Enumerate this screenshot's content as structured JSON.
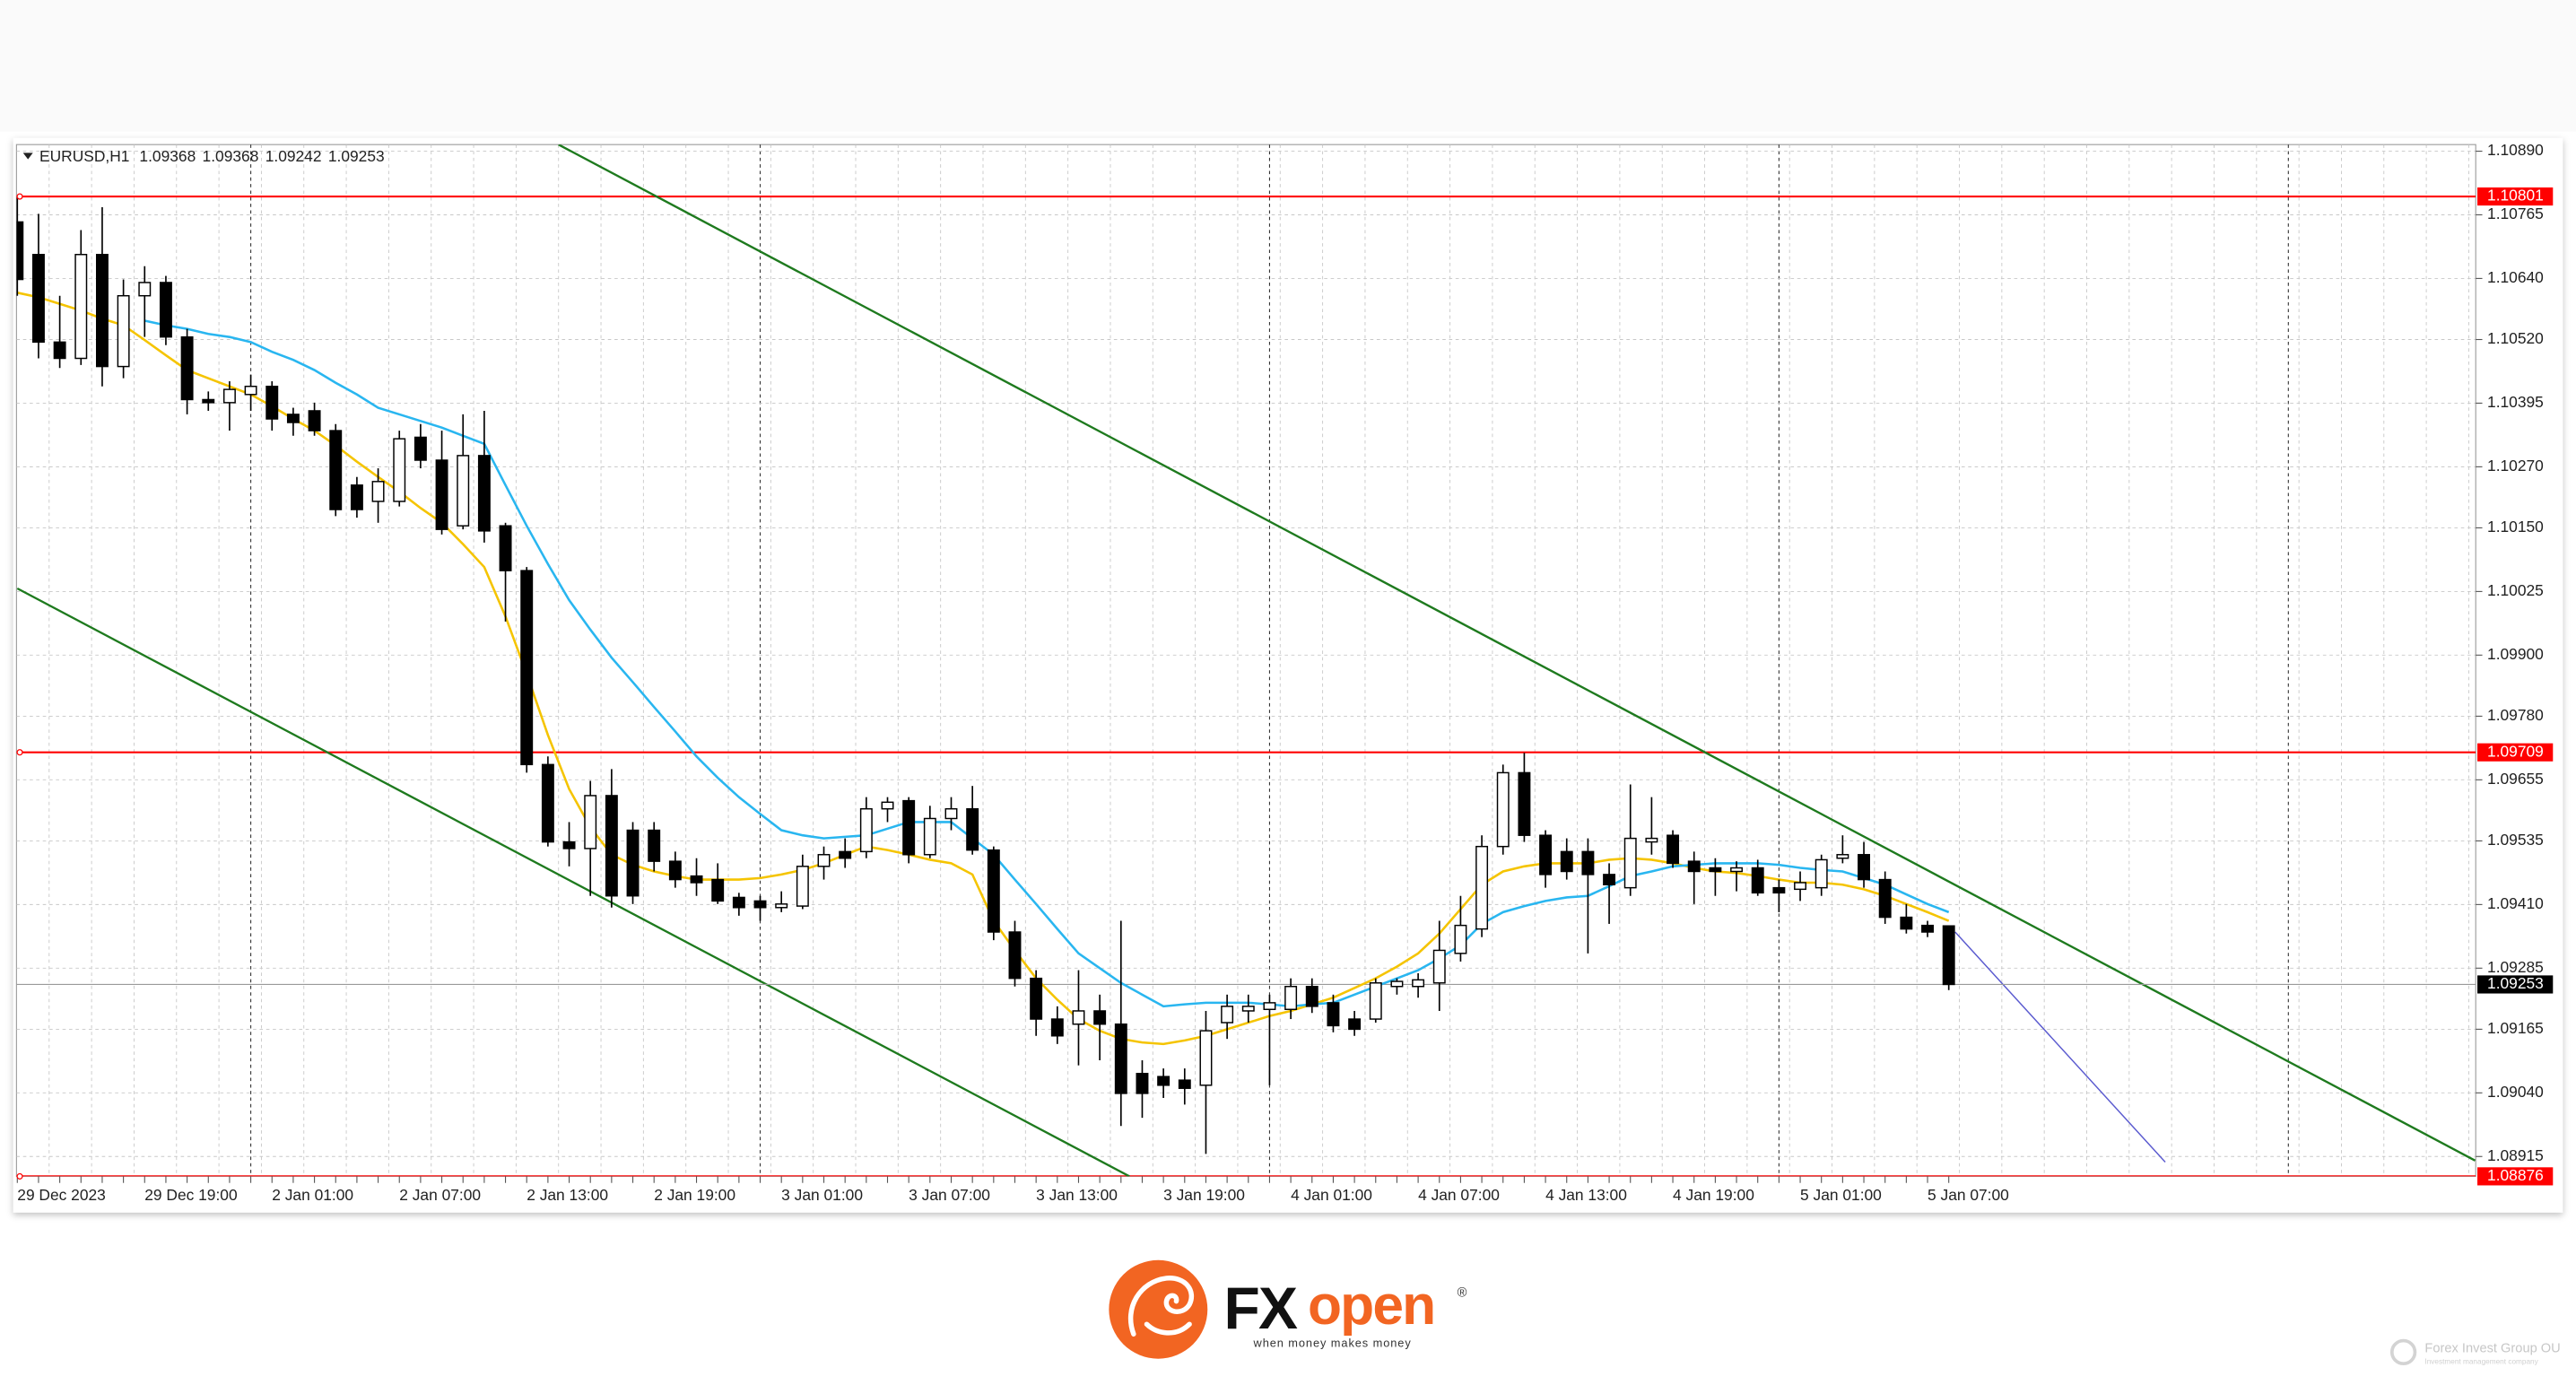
{
  "chart_data": {
    "type": "candlestick",
    "symbol": "EURUSD,H1",
    "categories": [
      "29 Dec 2023",
      null,
      null,
      null,
      null,
      null,
      "29 Dec 19:00",
      null,
      null,
      null,
      null,
      null,
      "2 Jan 01:00",
      null,
      null,
      null,
      null,
      null,
      "2 Jan 07:00",
      null,
      null,
      null,
      null,
      null,
      "2 Jan 13:00",
      null,
      null,
      null,
      null,
      null,
      "2 Jan 19:00",
      null,
      null,
      null,
      null,
      null,
      "3 Jan 01:00",
      null,
      null,
      null,
      null,
      null,
      "3 Jan 07:00",
      null,
      null,
      null,
      null,
      null,
      "3 Jan 13:00",
      null,
      null,
      null,
      null,
      null,
      "3 Jan 19:00",
      null,
      null,
      null,
      null,
      null,
      "4 Jan 01:00",
      null,
      null,
      null,
      null,
      null,
      "4 Jan 07:00",
      null,
      null,
      null,
      null,
      null,
      "4 Jan 13:00",
      null,
      null,
      null,
      null,
      null,
      "4 Jan 19:00",
      null,
      null,
      null,
      null,
      null,
      "5 Jan 01:00",
      null,
      null,
      null,
      null,
      null,
      "5 Jan 07:00",
      null
    ],
    "open": [
      1.10751,
      1.10687,
      1.10515,
      1.10483,
      1.10687,
      1.10467,
      1.10606,
      1.10632,
      1.10525,
      1.10402,
      1.10396,
      1.10412,
      1.10428,
      1.10373,
      1.1038,
      1.10341,
      1.10234,
      1.10202,
      1.10202,
      1.10328,
      1.10283,
      1.10154,
      1.10292,
      1.10154,
      1.10066,
      1.09685,
      1.09533,
      1.0952,
      1.09624,
      1.09556,
      1.09556,
      1.09495,
      1.09466,
      1.09459,
      1.09424,
      1.09417,
      1.09404,
      1.09407,
      1.09485,
      1.09514,
      1.09514,
      1.09598,
      1.09614,
      1.09508,
      1.09579,
      1.09598,
      1.09517,
      1.09356,
      1.09265,
      1.09185,
      1.09175,
      1.09201,
      1.09175,
      1.09078,
      1.09072,
      1.09065,
      1.09055,
      1.09178,
      1.09201,
      1.09204,
      1.09204,
      1.09249,
      1.09217,
      1.09185,
      1.09185,
      1.09249,
      1.09249,
      1.09256,
      1.09314,
      1.09362,
      1.09524,
      1.09669,
      1.09546,
      1.09514,
      1.09514,
      1.09469,
      1.09443,
      1.09533,
      1.09546,
      1.09495,
      1.09482,
      1.09475,
      1.09482,
      1.09443,
      1.0944,
      1.09443,
      1.09501,
      1.09508,
      1.09459,
      1.09385,
      1.09369,
      1.09368
    ],
    "high": [
      1.108,
      1.10767,
      1.10606,
      1.10735,
      1.1078,
      1.10638,
      1.10664,
      1.10645,
      1.10541,
      1.10418,
      1.10438,
      1.10451,
      1.10438,
      1.10386,
      1.10396,
      1.10354,
      1.1025,
      1.10267,
      1.10341,
      1.10354,
      1.10341,
      1.10373,
      1.1038,
      1.1016,
      1.10073,
      1.09701,
      1.09572,
      1.09653,
      1.09676,
      1.09572,
      1.09572,
      1.09514,
      1.09501,
      1.09491,
      1.09433,
      1.09427,
      1.09436,
      1.09508,
      1.09524,
      1.0954,
      1.09621,
      1.09621,
      1.09621,
      1.09604,
      1.09621,
      1.09643,
      1.09524,
      1.09378,
      1.09281,
      1.0921,
      1.09281,
      1.09233,
      1.09378,
      1.09104,
      1.09088,
      1.09088,
      1.09201,
      1.09233,
      1.09233,
      1.09233,
      1.09265,
      1.09265,
      1.09233,
      1.09201,
      1.09265,
      1.09265,
      1.09275,
      1.09378,
      1.09427,
      1.09546,
      1.09685,
      1.09708,
      1.09556,
      1.0954,
      1.0954,
      1.09491,
      1.09646,
      1.09621,
      1.09556,
      1.09514,
      1.09501,
      1.09495,
      1.09498,
      1.09459,
      1.09475,
      1.09508,
      1.09546,
      1.09533,
      1.09475,
      1.09411,
      1.09378,
      1.09368
    ],
    "low": [
      1.10606,
      1.10483,
      1.10464,
      1.1047,
      1.10428,
      1.10444,
      1.10525,
      1.10509,
      1.10373,
      1.1038,
      1.10341,
      1.1038,
      1.10341,
      1.10331,
      1.10331,
      1.10173,
      1.1017,
      1.1016,
      1.10192,
      1.10267,
      1.10137,
      1.10147,
      1.10121,
      1.09966,
      1.09669,
      1.09524,
      1.09485,
      1.09427,
      1.09404,
      1.09411,
      1.09475,
      1.09443,
      1.09427,
      1.09411,
      1.09388,
      1.09378,
      1.09395,
      1.09401,
      1.09459,
      1.09482,
      1.09501,
      1.09572,
      1.09491,
      1.09501,
      1.09556,
      1.09508,
      1.0934,
      1.09249,
      1.09152,
      1.09136,
      1.09094,
      1.09104,
      1.08975,
      1.08991,
      1.0903,
      1.09017,
      1.0892,
      1.09146,
      1.09178,
      1.09055,
      1.09185,
      1.09197,
      1.09159,
      1.09152,
      1.09178,
      1.09233,
      1.09227,
      1.09201,
      1.09298,
      1.09346,
      1.09508,
      1.09533,
      1.09443,
      1.09459,
      1.09314,
      1.09372,
      1.09427,
      1.09508,
      1.09482,
      1.09411,
      1.09427,
      1.09436,
      1.09427,
      1.09395,
      1.09417,
      1.09427,
      1.09491,
      1.09443,
      1.09372,
      1.09353,
      1.09346,
      1.09242
    ],
    "close": [
      1.10638,
      1.10515,
      1.10483,
      1.10687,
      1.10467,
      1.10606,
      1.10632,
      1.10525,
      1.10402,
      1.10396,
      1.10422,
      1.10428,
      1.10364,
      1.10357,
      1.10341,
      1.10186,
      1.10186,
      1.10241,
      1.10325,
      1.10283,
      1.10147,
      1.10292,
      1.10144,
      1.10066,
      1.09685,
      1.09533,
      1.0952,
      1.09624,
      1.09427,
      1.09427,
      1.09495,
      1.09459,
      1.09453,
      1.09417,
      1.09404,
      1.09404,
      1.09411,
      1.09485,
      1.09508,
      1.09501,
      1.09598,
      1.09611,
      1.09508,
      1.09579,
      1.09598,
      1.09517,
      1.09356,
      1.09265,
      1.09185,
      1.09152,
      1.09201,
      1.09175,
      1.09039,
      1.09039,
      1.09055,
      1.09049,
      1.09162,
      1.0921,
      1.0921,
      1.09217,
      1.09249,
      1.0921,
      1.09172,
      1.09165,
      1.09256,
      1.09259,
      1.09262,
      1.0932,
      1.09369,
      1.09524,
      1.09669,
      1.09546,
      1.09469,
      1.09475,
      1.09469,
      1.09449,
      1.0954,
      1.0954,
      1.09491,
      1.09475,
      1.09475,
      1.09482,
      1.09433,
      1.09433,
      1.09453,
      1.09498,
      1.09508,
      1.09459,
      1.09385,
      1.09362,
      1.09356,
      1.09253
    ],
    "bull_color": "#ffffff",
    "bear_color": "#000000",
    "indicators": [
      {
        "color": "#f5c400",
        "values": [
          1.10612,
          1.10603,
          1.1059,
          1.10577,
          1.10561,
          1.10548,
          1.10519,
          1.10489,
          1.1046,
          1.10444,
          1.10428,
          1.10412,
          1.10389,
          1.10364,
          1.10341,
          1.10312,
          1.1028,
          1.1025,
          1.10221,
          1.10189,
          1.1016,
          1.10118,
          1.10073,
          1.09976,
          1.09863,
          1.09743,
          1.09637,
          1.09562,
          1.09508,
          1.09488,
          1.09475,
          1.09466,
          1.09459,
          1.09459,
          1.09459,
          1.09462,
          1.09469,
          1.09478,
          1.09491,
          1.09508,
          1.09524,
          1.09517,
          1.09508,
          1.09498,
          1.09491,
          1.09469,
          1.09378,
          1.0932,
          1.09265,
          1.09223,
          1.09185,
          1.09162,
          1.09146,
          1.09139,
          1.09136,
          1.09143,
          1.09152,
          1.09165,
          1.09178,
          1.09191,
          1.09201,
          1.09214,
          1.09227,
          1.09246,
          1.09265,
          1.09288,
          1.09314,
          1.09353,
          1.09401,
          1.09449,
          1.09475,
          1.09485,
          1.09491,
          1.09491,
          1.09491,
          1.09498,
          1.09501,
          1.09498,
          1.09491,
          1.09482,
          1.09475,
          1.09472,
          1.09466,
          1.09459,
          1.09453,
          1.09453,
          1.09449,
          1.0944,
          1.09427,
          1.09411,
          1.09395,
          1.09378
        ]
      },
      {
        "color": "#29b6f0",
        "values": [
          null,
          null,
          null,
          null,
          null,
          null,
          1.10557,
          1.10548,
          1.10541,
          1.10531,
          1.10525,
          1.10515,
          1.10496,
          1.1048,
          1.1046,
          1.10435,
          1.10412,
          1.10386,
          1.10373,
          1.1036,
          1.10347,
          1.10331,
          1.10315,
          1.10234,
          1.10154,
          1.10079,
          1.10008,
          1.0995,
          1.09895,
          1.09847,
          1.09798,
          1.0975,
          1.09701,
          1.09659,
          1.09621,
          1.09588,
          1.09556,
          1.09546,
          1.0954,
          1.09543,
          1.09546,
          1.09559,
          1.09572,
          1.09572,
          1.09572,
          1.0954,
          1.09508,
          1.09459,
          1.09411,
          1.09362,
          1.09314,
          1.09285,
          1.09256,
          1.09233,
          1.0921,
          1.09214,
          1.09217,
          1.09217,
          1.09217,
          1.09214,
          1.0921,
          1.09214,
          1.09217,
          1.09233,
          1.09249,
          1.09265,
          1.09281,
          1.09304,
          1.0933,
          1.09372,
          1.09395,
          1.09407,
          1.09417,
          1.09424,
          1.09427,
          1.09446,
          1.09466,
          1.09475,
          1.09485,
          1.09488,
          1.09491,
          1.09491,
          1.09491,
          1.09488,
          1.09482,
          1.09478,
          1.09475,
          1.09462,
          1.09449,
          1.0943,
          1.09411,
          1.09395
        ]
      }
    ],
    "levels": [
      {
        "value": 1.10801,
        "color": "#ff0000"
      },
      {
        "value": 1.09709,
        "color": "#ff0000"
      },
      {
        "value": 1.08876,
        "color": "#ff0000"
      }
    ],
    "trendlines": [
      {
        "color": "#1e7a1e",
        "points": [
          [
            25.5,
            1.10903
          ],
          [
            115.8,
            1.08907
          ]
        ]
      },
      {
        "color": "#1e7a1e",
        "points": [
          [
            0,
            1.10031
          ],
          [
            52.4,
            1.08876
          ]
        ]
      },
      {
        "color": "#5a5acf",
        "points": [
          [
            91.3,
            1.09356
          ],
          [
            101.2,
            1.08904
          ]
        ]
      }
    ],
    "ylim": [
      1.08876,
      1.10903
    ],
    "yticks": [
      {
        "value": 1.1089,
        "label": "1.10890"
      },
      1.10765,
      {
        "value": 1.1064,
        "label": "1.10640"
      },
      {
        "value": 1.1052,
        "label": "1.10520"
      },
      1.10395,
      {
        "value": 1.1027,
        "label": "1.10270"
      },
      {
        "value": 1.1015,
        "label": "1.10150"
      },
      1.10025,
      {
        "value": 1.099,
        "label": "1.09900"
      },
      {
        "value": 1.0978,
        "label": "1.09780"
      },
      1.09655,
      1.09535,
      {
        "value": 1.0941,
        "label": "1.09410"
      },
      1.09285,
      1.09165,
      {
        "value": 1.0904,
        "label": "1.09040"
      },
      1.08915
    ],
    "grid": true
  },
  "branding": {
    "fx": "FX",
    "open": "open",
    "registered": "®",
    "tagline": "when money makes money",
    "watermark": "Forex Invest Group OU",
    "watermark_sub": "Investment management company"
  }
}
